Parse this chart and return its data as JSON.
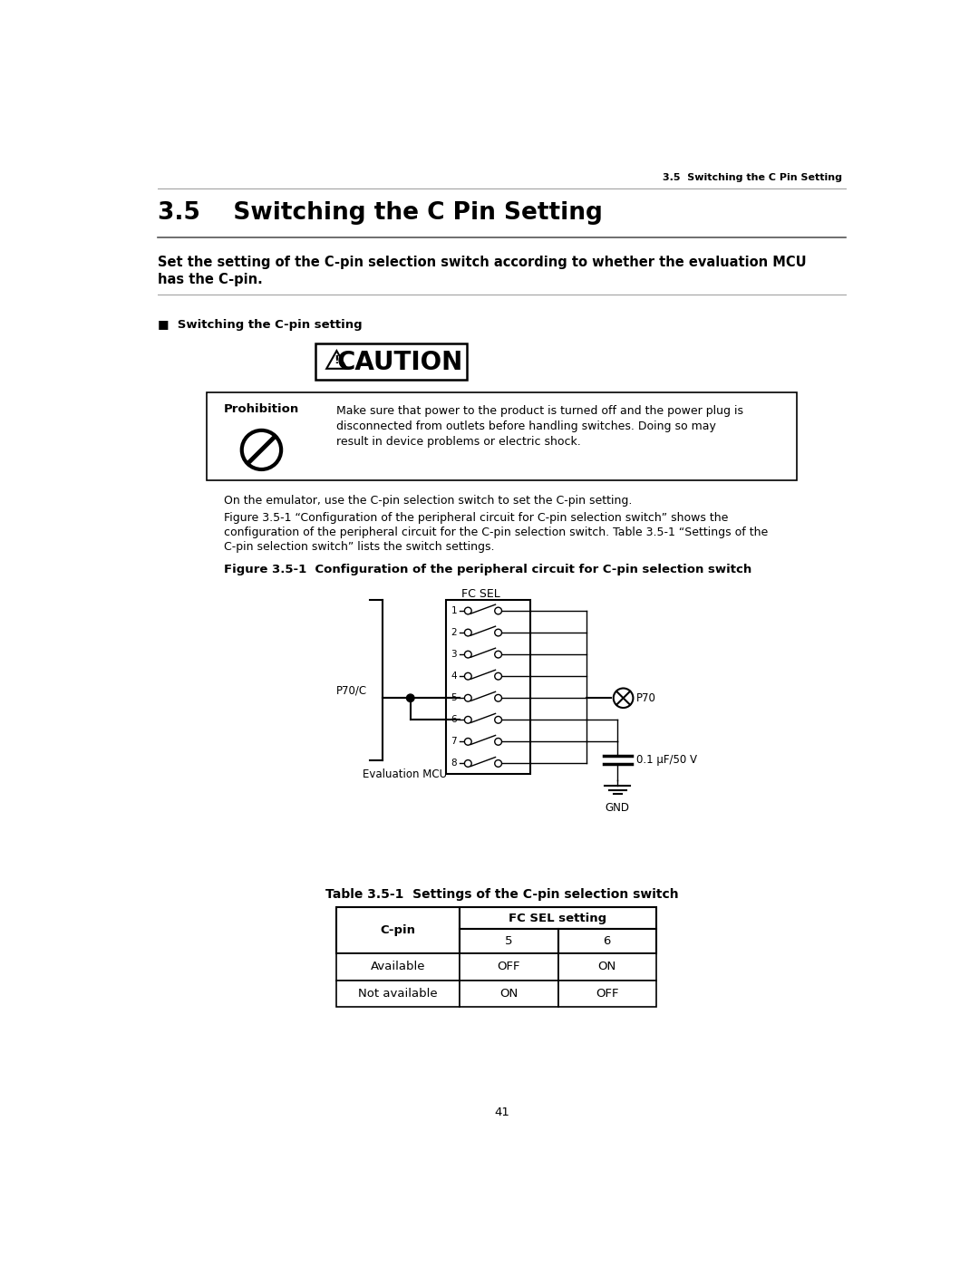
{
  "page_header": "3.5  Switching the C Pin Setting",
  "section_title": "3.5    Switching the C Pin Setting",
  "bold_intro_line1": "Set the setting of the C-pin selection switch according to whether the evaluation MCU",
  "bold_intro_line2": "has the C-pin.",
  "section_label": "■  Switching the C-pin setting",
  "prohibition_title": "Prohibition",
  "prohibition_text_line1": "Make sure that power to the product is turned off and the power plug is",
  "prohibition_text_line2": "disconnected from outlets before handling switches. Doing so may",
  "prohibition_text_line3": "result in device problems or electric shock.",
  "para1": "On the emulator, use the C-pin selection switch to set the C-pin setting.",
  "para2_line1": "Figure 3.5-1 “Configuration of the peripheral circuit for C-pin selection switch” shows the",
  "para2_line2": "configuration of the peripheral circuit for the C-pin selection switch. Table 3.5-1 “Settings of the",
  "para2_line3": "C-pin selection switch” lists the switch settings.",
  "fig_caption": "Figure 3.5-1  Configuration of the peripheral circuit for C-pin selection switch",
  "fc_sel_label": "FC SEL",
  "p70c_label": "P70/C",
  "p70_label": "P70",
  "eval_mcu_label": "Evaluation MCU",
  "cap_label": "0.1 μF/50 V",
  "gnd_label": "GND",
  "table_caption": "Table 3.5-1  Settings of the C-pin selection switch",
  "table_col1": "C-pin",
  "table_col2": "FC SEL setting",
  "table_col2a": "5",
  "table_col2b": "6",
  "table_rows": [
    [
      "Available",
      "OFF",
      "ON"
    ],
    [
      "Not available",
      "ON",
      "OFF"
    ]
  ],
  "bg_color": "#ffffff",
  "text_color": "#000000",
  "page_number": "41"
}
